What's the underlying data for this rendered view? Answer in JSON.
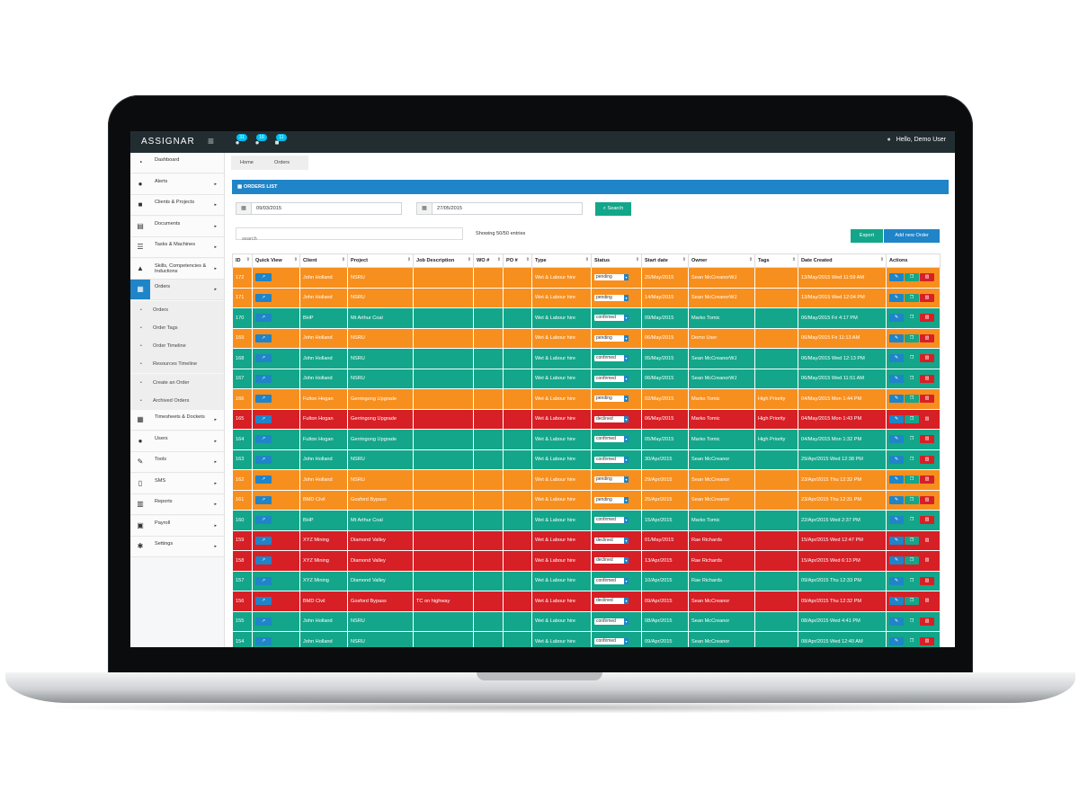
{
  "app": {
    "logo": "ASSIGNAR",
    "hamburger": "≡"
  },
  "topbar": {
    "badges": [
      {
        "icon": "chat-icon",
        "glyph": "●",
        "count": "31"
      },
      {
        "icon": "comments-icon",
        "glyph": "●",
        "count": "16"
      },
      {
        "icon": "envelope-icon",
        "glyph": "■",
        "count": "11"
      }
    ],
    "user": {
      "icon": "user-icon",
      "glyph": "●",
      "greeting": "Hello, Demo User"
    }
  },
  "sidebar": {
    "items": [
      {
        "label": "Dashboard",
        "icon": "dashboard-icon",
        "glyph": "◔",
        "caret": ""
      },
      {
        "label": "Alerts",
        "icon": "alert-icon",
        "glyph": "●",
        "caret": "▸"
      },
      {
        "label": "Clients & Projects",
        "icon": "briefcase-icon",
        "glyph": "■",
        "caret": "▸"
      },
      {
        "label": "Documents",
        "icon": "document-icon",
        "glyph": "▤",
        "caret": "▸"
      },
      {
        "label": "Tasks & Machines",
        "icon": "tasks-icon",
        "glyph": "☰",
        "caret": "▸"
      },
      {
        "label": "Skills, Competencies & Inductions",
        "icon": "graduation-icon",
        "glyph": "▲",
        "caret": "▸"
      },
      {
        "label": "Orders",
        "icon": "calendar-icon",
        "glyph": "▦",
        "caret": "▸"
      }
    ],
    "sub_items": [
      "Orders",
      "Order Tags",
      "Order Timeline",
      "Resources Timeline",
      "Create an Order",
      "Archived Orders"
    ],
    "items_after": [
      {
        "label": "Timesheets & Dockets",
        "icon": "timesheet-icon",
        "glyph": "▦",
        "caret": "▸"
      },
      {
        "label": "Users",
        "icon": "users-icon",
        "glyph": "●",
        "caret": "▸"
      },
      {
        "label": "Tools",
        "icon": "wrench-icon",
        "glyph": "✎",
        "caret": "▸"
      },
      {
        "label": "SMS",
        "icon": "mobile-icon",
        "glyph": "▯",
        "caret": "▸"
      },
      {
        "label": "Reports",
        "icon": "chart-icon",
        "glyph": "▥",
        "caret": "▸"
      },
      {
        "label": "Payroll",
        "icon": "money-icon",
        "glyph": "▣",
        "caret": "▸"
      },
      {
        "label": "Settings",
        "icon": "gear-icon",
        "glyph": "✱",
        "caret": "▸"
      }
    ]
  },
  "breadcrumb": [
    "Home",
    "Orders"
  ],
  "panel": {
    "title": "ORDERS LIST",
    "icon": "▦"
  },
  "filters": {
    "start_date": "09/03/2015",
    "end_date": "27/05/2015",
    "search_label": "Search",
    "search_icon": "⌕",
    "calendar_glyph": "▦"
  },
  "list": {
    "search_placeholder": "search",
    "showing": "Showing 50/50 entries",
    "export_label": "Export",
    "add_label": "Add new Order"
  },
  "table": {
    "columns": [
      "ID",
      "Quick View",
      "Client",
      "Project",
      "Job Description",
      "WO #",
      "PO #",
      "Type",
      "Status",
      "Start date",
      "Owner",
      "Tags",
      "Date Created",
      "Actions"
    ],
    "rows": [
      {
        "id": "172",
        "client": "John Holland",
        "project": "NSRU",
        "job": "",
        "wo": "",
        "po": "",
        "type": "Wet & Labour hire",
        "status": "pending",
        "start": "25/May/2015",
        "owner": "Sean McCreanorWJ",
        "tags": "",
        "created": "13/May/2015 Wed 11:59 AM",
        "color": "orange"
      },
      {
        "id": "171",
        "client": "John Holland",
        "project": "NSRU",
        "job": "",
        "wo": "",
        "po": "",
        "type": "Wet & Labour hire",
        "status": "pending",
        "start": "14/May/2015",
        "owner": "Sean McCreanorWJ",
        "tags": "",
        "created": "13/May/2015 Wed 12:04 PM",
        "color": "orange"
      },
      {
        "id": "170",
        "client": "BHP",
        "project": "Mt Arthur Coal",
        "job": "",
        "wo": "",
        "po": "",
        "type": "Wet & Labour hire",
        "status": "confirmed",
        "start": "09/May/2015",
        "owner": "Marko Tomic",
        "tags": "",
        "created": "06/May/2015 Fri 4:17 PM",
        "color": "green"
      },
      {
        "id": "169",
        "client": "John Holland",
        "project": "NSRU",
        "job": "",
        "wo": "",
        "po": "",
        "type": "Wet & Labour hire",
        "status": "pending",
        "start": "06/May/2015",
        "owner": "Demo User",
        "tags": "",
        "created": "06/May/2015 Fri 11:13 AM",
        "color": "orange"
      },
      {
        "id": "168",
        "client": "John Holland",
        "project": "NSRU",
        "job": "",
        "wo": "",
        "po": "",
        "type": "Wet & Labour hire",
        "status": "confirmed",
        "start": "05/May/2015",
        "owner": "Sean McCreanorWJ",
        "tags": "",
        "created": "06/May/2015 Wed 12:13 PM",
        "color": "green"
      },
      {
        "id": "167",
        "client": "John Holland",
        "project": "NSRU",
        "job": "",
        "wo": "",
        "po": "",
        "type": "Wet & Labour hire",
        "status": "confirmed",
        "start": "06/May/2015",
        "owner": "Sean McCreanorWJ",
        "tags": "",
        "created": "06/May/2015 Wed 11:51 AM",
        "color": "green"
      },
      {
        "id": "166",
        "client": "Fulton Hogan",
        "project": "Gerringong Upgrade",
        "job": "",
        "wo": "",
        "po": "",
        "type": "Wet & Labour hire",
        "status": "pending",
        "start": "02/May/2015",
        "owner": "Marko Tomic",
        "tags": "High Priority",
        "created": "04/May/2015 Mon 1:44 PM",
        "color": "orange"
      },
      {
        "id": "165",
        "client": "Fulton Hogan",
        "project": "Gerringong Upgrade",
        "job": "",
        "wo": "",
        "po": "",
        "type": "Wet & Labour hire",
        "status": "declined",
        "start": "06/May/2015",
        "owner": "Marko Tomic",
        "tags": "High Priority",
        "created": "04/May/2015 Mon 1:43 PM",
        "color": "red"
      },
      {
        "id": "164",
        "client": "Fulton Hogan",
        "project": "Gerringong Upgrade",
        "job": "",
        "wo": "",
        "po": "",
        "type": "Wet & Labour hire",
        "status": "confirmed",
        "start": "05/May/2015",
        "owner": "Marko Tomic",
        "tags": "High Priority",
        "created": "04/May/2015 Mon 1:32 PM",
        "color": "green"
      },
      {
        "id": "163",
        "client": "John Holland",
        "project": "NSRU",
        "job": "",
        "wo": "",
        "po": "",
        "type": "Wet & Labour hire",
        "status": "confirmed",
        "start": "30/Apr/2015",
        "owner": "Sean McCreanor",
        "tags": "",
        "created": "29/Apr/2015 Wed 12:38 PM",
        "color": "green"
      },
      {
        "id": "162",
        "client": "John Holland",
        "project": "NSRU",
        "job": "",
        "wo": "",
        "po": "",
        "type": "Wet & Labour hire",
        "status": "pending",
        "start": "29/Apr/2015",
        "owner": "Sean McCreanor",
        "tags": "",
        "created": "23/Apr/2015 Thu 12:32 PM",
        "color": "orange"
      },
      {
        "id": "161",
        "client": "BMD Civil",
        "project": "Gosford Bypass",
        "job": "",
        "wo": "",
        "po": "",
        "type": "Wet & Labour hire",
        "status": "pending",
        "start": "25/Apr/2015",
        "owner": "Sean McCreanor",
        "tags": "",
        "created": "23/Apr/2015 Thu 12:31 PM",
        "color": "orange"
      },
      {
        "id": "160",
        "client": "BHP",
        "project": "Mt Arthur Coal",
        "job": "",
        "wo": "",
        "po": "",
        "type": "Wet & Labour hire",
        "status": "confirmed",
        "start": "15/Apr/2015",
        "owner": "Marko Tomic",
        "tags": "",
        "created": "22/Apr/2015 Wed 2:37 PM",
        "color": "green"
      },
      {
        "id": "159",
        "client": "XYZ Mining",
        "project": "Diamond Valley",
        "job": "",
        "wo": "",
        "po": "",
        "type": "Wet & Labour hire",
        "status": "declined",
        "start": "01/May/2015",
        "owner": "Rae Richards",
        "tags": "",
        "created": "15/Apr/2015 Wed 12:47 PM",
        "color": "red"
      },
      {
        "id": "158",
        "client": "XYZ Mining",
        "project": "Diamond Valley",
        "job": "",
        "wo": "",
        "po": "",
        "type": "Wet & Labour hire",
        "status": "declined",
        "start": "13/Apr/2015",
        "owner": "Rae Richards",
        "tags": "",
        "created": "15/Apr/2015 Wed 6:13 PM",
        "color": "red"
      },
      {
        "id": "157",
        "client": "XYZ Mining",
        "project": "Diamond Valley",
        "job": "",
        "wo": "",
        "po": "",
        "type": "Wet & Labour hire",
        "status": "confirmed",
        "start": "10/Apr/2015",
        "owner": "Rae Richards",
        "tags": "",
        "created": "09/Apr/2015 Thu 12:33 PM",
        "color": "green"
      },
      {
        "id": "156",
        "client": "BMD Civil",
        "project": "Gosford Bypass",
        "job": "TC on highway",
        "wo": "",
        "po": "",
        "type": "Wet & Labour hire",
        "status": "declined",
        "start": "09/Apr/2015",
        "owner": "Sean McCreanor",
        "tags": "",
        "created": "09/Apr/2015 Thu 12:32 PM",
        "color": "red"
      },
      {
        "id": "155",
        "client": "John Holland",
        "project": "NSRU",
        "job": "",
        "wo": "",
        "po": "",
        "type": "Wet & Labour hire",
        "status": "confirmed",
        "start": "08/Apr/2015",
        "owner": "Sean McCreanor",
        "tags": "",
        "created": "08/Apr/2015 Wed 4:41 PM",
        "color": "green"
      },
      {
        "id": "154",
        "client": "John Holland",
        "project": "NSRU",
        "job": "",
        "wo": "",
        "po": "",
        "type": "Wet & Labour hire",
        "status": "confirmed",
        "start": "09/Apr/2015",
        "owner": "Sean McCreanor",
        "tags": "",
        "created": "08/Apr/2015 Wed 12:40 AM",
        "color": "green"
      }
    ]
  },
  "icons": {
    "quick_view": "↗",
    "edit": "✎",
    "copy": "❐",
    "delete": "▥",
    "sort": "⇕",
    "status_caret": "▾"
  },
  "colors": {
    "orange": "#f78f1e",
    "green": "#13a68a",
    "red": "#d71f26",
    "blue": "#1f84c8",
    "topbar": "#222d32"
  }
}
